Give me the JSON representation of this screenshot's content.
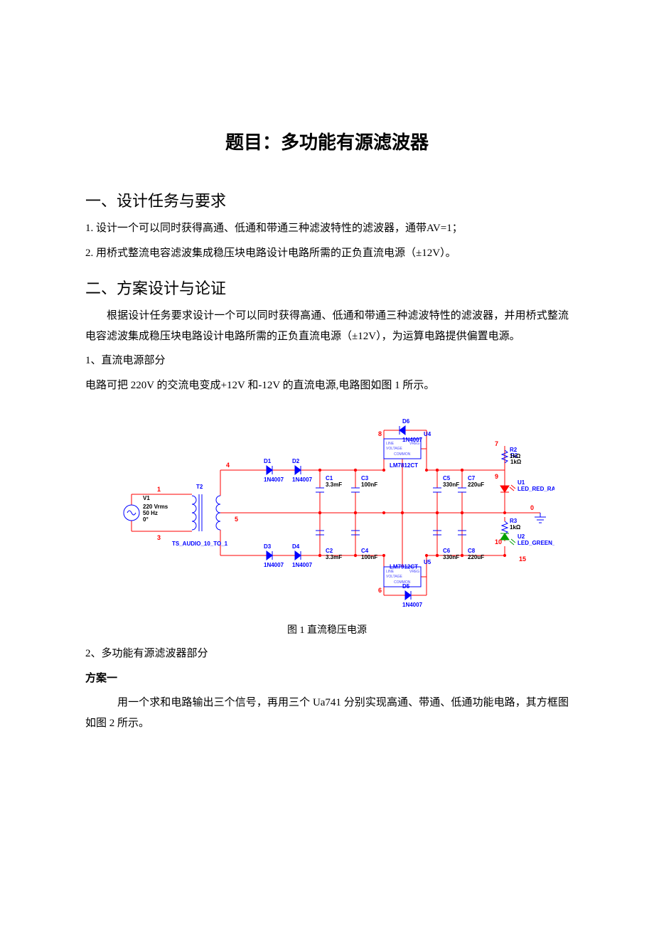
{
  "doc": {
    "title": "题目：多功能有源滤波器",
    "h_section1": "一、设计任务与要求",
    "req1": "1.  设计一个可以同时获得高通、低通和带通三种滤波特性的滤波器，通带AV=1；",
    "req2": "2.  用桥式整流电容滤波集成稳压块电路设计电路所需的正负直流电源（±12V）。",
    "h_section2": "二、方案设计与论证",
    "design_intro": "根据设计任务要求设计一个可以同时获得高通、低通和带通三种滤波特性的滤波器，并用桥式整流电容滤波集成稳压块电路设计电路所需的正负直流电源（±12V），为运算电路提供偏置电源。",
    "sub1_title": "1、直流电源部分",
    "sub1_body": "电路可把 220V 的交流电变成+12V 和-12V 的直流电源,电路图如图 1 所示。",
    "fig1_caption": "图 1   直流稳压电源",
    "sub2_title": "2、多功能有源滤波器部分",
    "scheme1_label": "方案一",
    "scheme1_body": "用一个求和电路输出三个信号，再用三个 Ua741 分别实现高通、带通、低通功能电路，其方框图如图 2 所示。"
  },
  "circuit": {
    "type": "schematic",
    "background": "#ffffff",
    "wire_color": "#ff0000",
    "component_color": "#0000ff",
    "text_color_label": "#0000ff",
    "text_color_value": "#000000",
    "node_color": "#ff0000",
    "font_family": "Arial",
    "label_fontsize": 8,
    "node_fontsize": 9,
    "source": {
      "ref": "V1",
      "lines": [
        "220 Vrms",
        "50 Hz",
        "0°"
      ]
    },
    "transformer": {
      "ref": "T2",
      "model": "TS_AUDIO_10_TO_1"
    },
    "diodes": [
      {
        "ref": "D1",
        "model": "1N4007"
      },
      {
        "ref": "D2",
        "model": "1N4007"
      },
      {
        "ref": "D3",
        "model": "1N4007"
      },
      {
        "ref": "D4",
        "model": "1N4007"
      },
      {
        "ref": "D5",
        "model": "1N4007"
      },
      {
        "ref": "D6",
        "model": "1N4007"
      }
    ],
    "caps": [
      {
        "ref": "C1",
        "val": "3.3mF"
      },
      {
        "ref": "C2",
        "val": "3.3mF"
      },
      {
        "ref": "C3",
        "val": "100nF"
      },
      {
        "ref": "C4",
        "val": "100nF"
      },
      {
        "ref": "C5",
        "val": "330nF"
      },
      {
        "ref": "C6",
        "val": "330nF"
      },
      {
        "ref": "C7",
        "val": "220uF"
      },
      {
        "ref": "C8",
        "val": "220uF"
      }
    ],
    "regs": [
      {
        "ref": "U4",
        "model": "LM7812CT",
        "pins": [
          "LINE",
          "VOLTAGE",
          "COMMON",
          "VREG"
        ]
      },
      {
        "ref": "U5",
        "model": "LM7912CT",
        "pins": [
          "COMMON",
          "VOLTAGE",
          "LINE",
          "VREG"
        ]
      }
    ],
    "resistors": [
      {
        "ref": "R2",
        "val": "1kΩ"
      },
      {
        "ref": "R3",
        "val": "1kΩ"
      }
    ],
    "leds": [
      {
        "ref": "U1",
        "model": "LED_RED_RATED",
        "color": "#ff0000"
      },
      {
        "ref": "U2",
        "model": "LED_GREEN_RATED",
        "color": "#00a000"
      }
    ],
    "nodes": [
      "0",
      "1",
      "3",
      "4",
      "5",
      "6",
      "7",
      "8",
      "9",
      "10",
      "15"
    ]
  }
}
